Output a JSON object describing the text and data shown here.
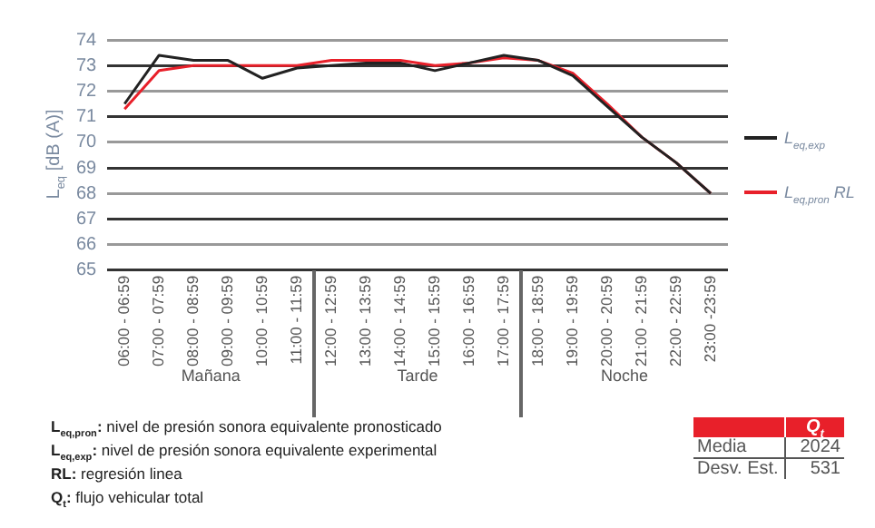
{
  "chart_data": [
    {
      "type": "line",
      "ylabel": "L$_{eq}$ [dB (A)]",
      "categories": [
        "06:00 - 06:59",
        "07:00 - 07:59",
        "08:00 - 08:59",
        "09:00 - 09:59",
        "10:00 - 10:59",
        "11:00 - 11:59",
        "12:00 - 12:59",
        "13:00 - 13:59",
        "14:00 - 14:59",
        "15:00 - 15:59",
        "16:00 - 16:59",
        "17:00 - 17:59",
        "18:00 - 18:59",
        "19:00 - 19:59",
        "20:00 - 20:59",
        "21:00 - 21:59",
        "22:00 - 22:59",
        "23:00 -23:59"
      ],
      "series": [
        {
          "name": "L$_{eq,exp}$",
          "color": "#222222",
          "values": [
            71.5,
            73.4,
            73.2,
            73.2,
            72.5,
            72.9,
            73.0,
            73.1,
            73.1,
            72.8,
            73.1,
            73.4,
            73.2,
            72.6,
            71.4,
            70.2,
            69.2,
            68.0
          ]
        },
        {
          "name": "L$_{eq,pron}$ RL",
          "color": "#e8202a",
          "values": [
            71.3,
            72.8,
            73.0,
            73.0,
            73.0,
            73.0,
            73.2,
            73.2,
            73.2,
            73.0,
            73.1,
            73.3,
            73.2,
            72.7,
            71.5,
            70.2,
            69.2,
            68.0
          ]
        }
      ],
      "ylim": [
        65,
        74
      ],
      "yticks": [
        65,
        66,
        67,
        68,
        69,
        70,
        71,
        72,
        73,
        74
      ],
      "grid": "y",
      "legend": "right",
      "marker": "none",
      "line_style": "solid",
      "annotations": [
        "Mañana",
        "Tarde",
        "Noche",
        "L$_{eq,pron}$: nivel de presión sonora equivalente pronosticado",
        "L$_{eq,exp}$: nivel de presión sonora equivalente experimental",
        "RL: regresión linea",
        "Q$_{t}$: flujo vehicular total"
      ]
    },
    {
      "type": "other",
      "title": "Q$_{t}$",
      "categories": [
        "Media",
        "Desv. Est."
      ],
      "values": [
        2024,
        531
      ],
      "data_labels": true
    }
  ]
}
